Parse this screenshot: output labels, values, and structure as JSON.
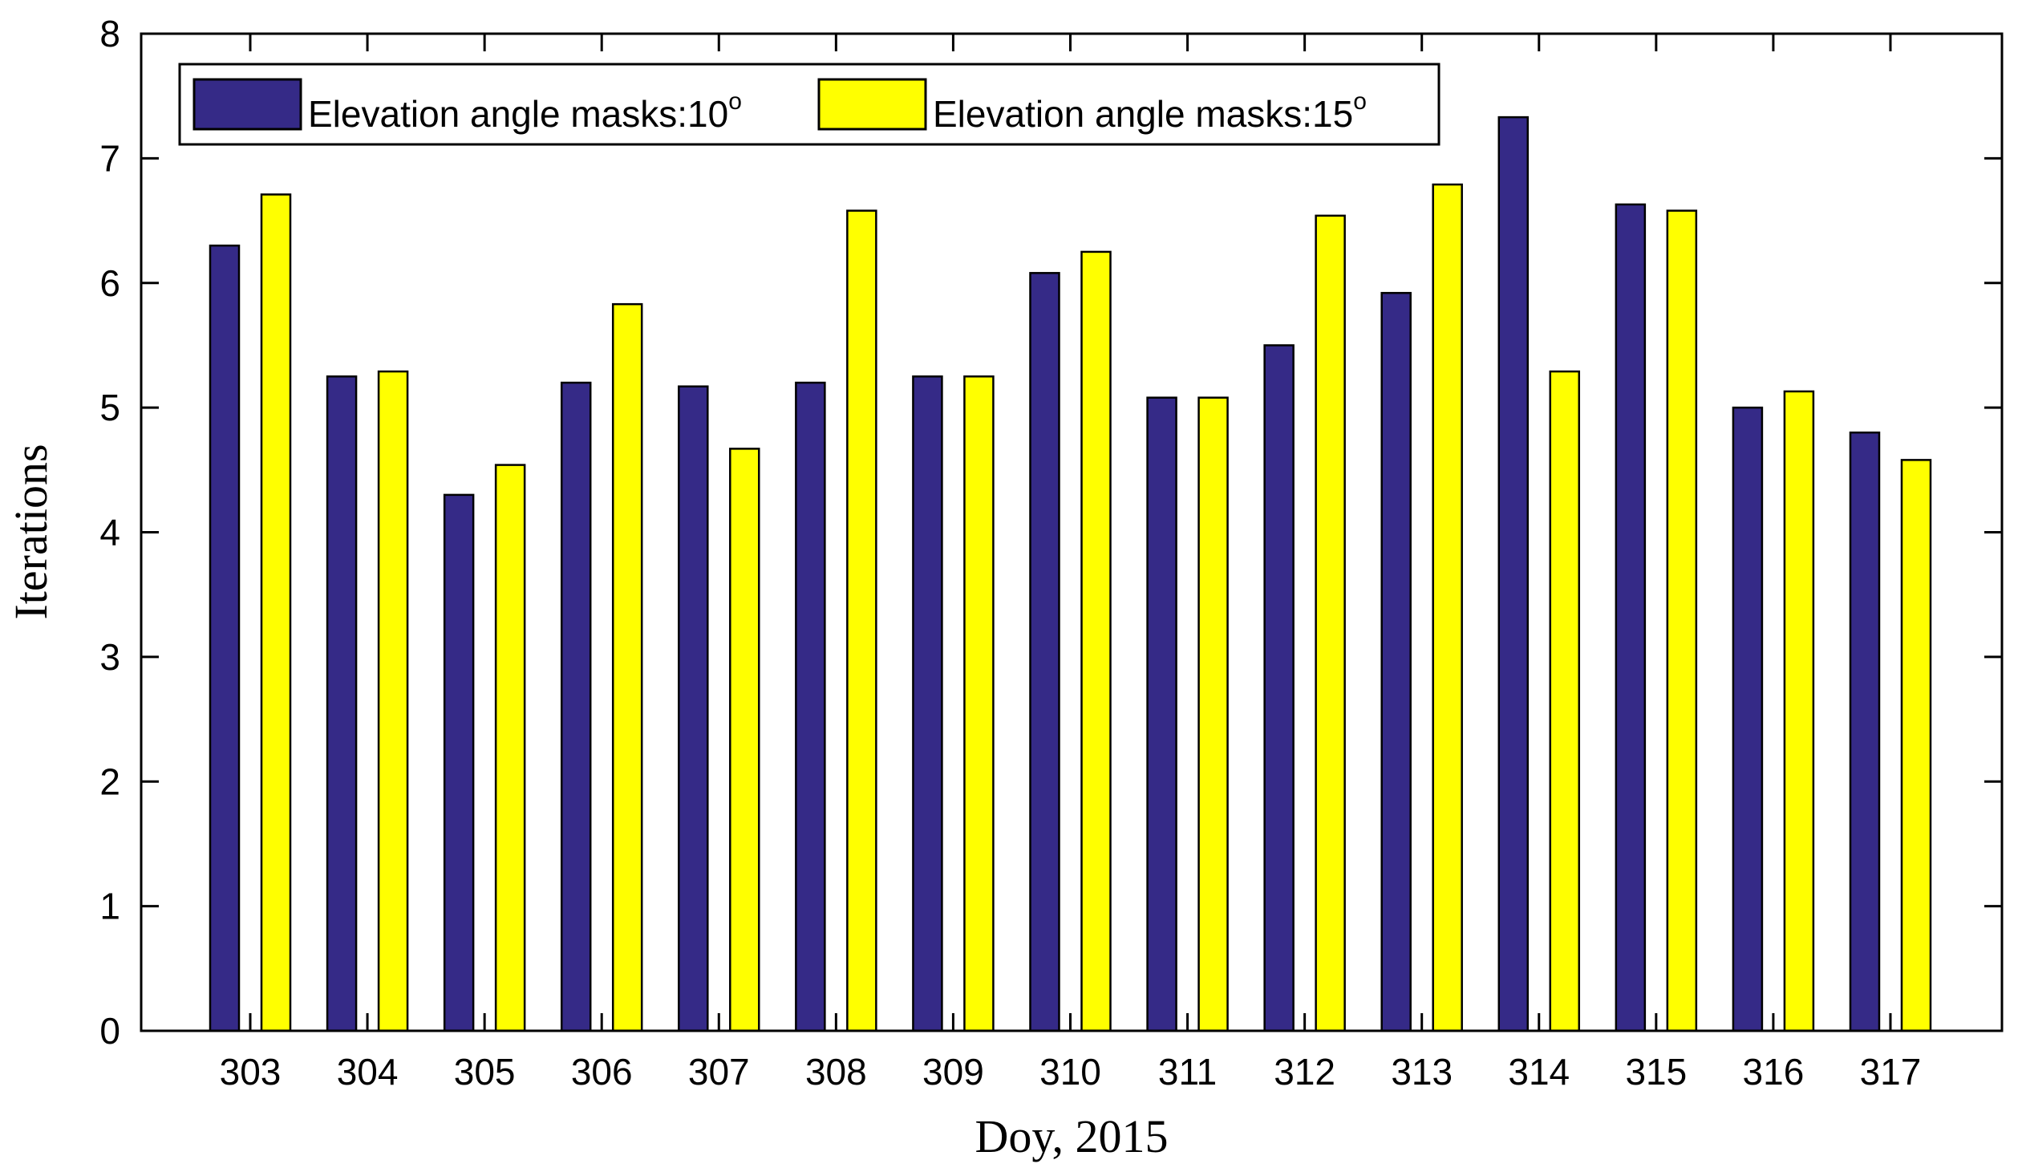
{
  "chart_data": {
    "type": "bar",
    "title": "",
    "xlabel": "Doy, 2015",
    "ylabel": "Iterations",
    "categories": [
      "303",
      "304",
      "305",
      "306",
      "307",
      "308",
      "309",
      "310",
      "311",
      "312",
      "313",
      "314",
      "315",
      "316",
      "317"
    ],
    "series": [
      {
        "name": "Elevation angle masks:10",
        "superscript": "o",
        "color": "#352a87",
        "values": [
          6.3,
          5.25,
          4.3,
          5.2,
          5.17,
          5.2,
          5.25,
          6.08,
          5.08,
          5.5,
          5.92,
          7.33,
          6.63,
          5.0,
          4.8
        ]
      },
      {
        "name": "Elevation angle masks:15",
        "superscript": "o",
        "color": "#ffff00",
        "values": [
          6.71,
          5.29,
          4.54,
          5.83,
          4.67,
          6.58,
          5.25,
          6.25,
          5.08,
          6.54,
          6.79,
          5.29,
          6.58,
          5.13,
          4.58
        ]
      }
    ],
    "ylim": [
      0,
      8
    ],
    "yticks": [
      "0",
      "1",
      "2",
      "3",
      "4",
      "5",
      "6",
      "7",
      "8"
    ],
    "grid": false,
    "legend_position": "top-left"
  }
}
